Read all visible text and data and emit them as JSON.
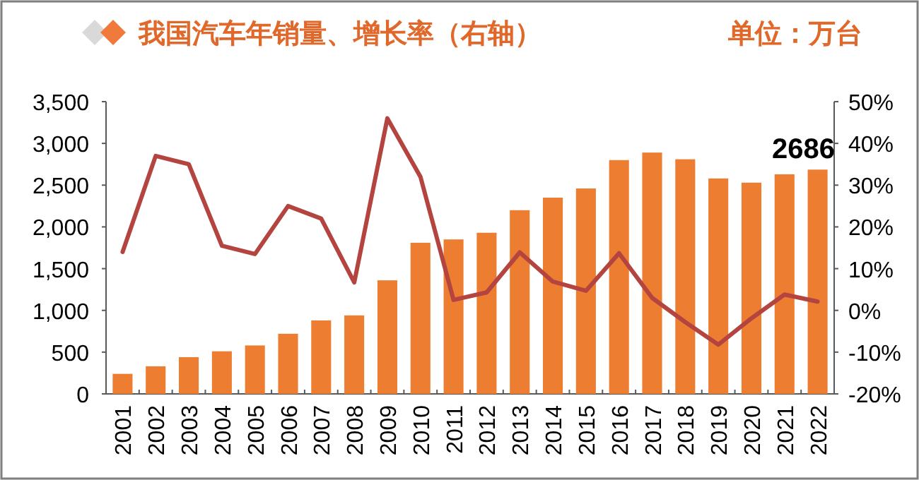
{
  "chart_data": {
    "type": "bar",
    "title": "我国汽车年销量、增长率（右轴）",
    "subtitle": "单位：万台",
    "categories": [
      "2001",
      "2002",
      "2003",
      "2004",
      "2005",
      "2006",
      "2007",
      "2008",
      "2009",
      "2010",
      "2011",
      "2012",
      "2013",
      "2014",
      "2015",
      "2016",
      "2017",
      "2018",
      "2019",
      "2020",
      "2021",
      "2022"
    ],
    "series": [
      {
        "color": "#ed7d31",
        "values": [
          240,
          330,
          440,
          510,
          580,
          720,
          880,
          940,
          1360,
          1810,
          1850,
          1930,
          2200,
          2350,
          2460,
          2800,
          2890,
          2810,
          2580,
          2530,
          2630,
          2686
        ],
        "value_labels": [
          null,
          null,
          null,
          null,
          null,
          null,
          null,
          null,
          null,
          null,
          null,
          null,
          null,
          null,
          null,
          null,
          null,
          null,
          null,
          null,
          null,
          "2686"
        ]
      },
      {
        "type": "line",
        "axis": "y2",
        "color": "#b4443f",
        "values": [
          14,
          37,
          35,
          15.5,
          13.5,
          25,
          22,
          6.7,
          46,
          32,
          2.5,
          4.3,
          13.9,
          6.9,
          4.7,
          13.7,
          3,
          -2.8,
          -8.2,
          -1.9,
          3.8,
          2.1
        ]
      }
    ],
    "ylim": [
      0,
      3500
    ],
    "yticks": [
      0,
      500,
      {
        "value": 1000,
        "label": "1,000"
      },
      {
        "value": 1500,
        "label": "1,500"
      },
      {
        "value": 2000,
        "label": "2,000"
      },
      {
        "value": 2500,
        "label": "2,500"
      },
      {
        "value": 3000,
        "label": "3,000"
      },
      {
        "value": 3500,
        "label": "3,500"
      }
    ],
    "y2lim": [
      -20,
      50
    ],
    "y2ticks": [
      {
        "value": -20,
        "label": "-20%"
      },
      {
        "value": -10,
        "label": "-10%"
      },
      {
        "value": 0,
        "label": "0%"
      },
      {
        "value": 10,
        "label": "10%"
      },
      {
        "value": 20,
        "label": "20%"
      },
      {
        "value": 30,
        "label": "30%"
      },
      {
        "value": 40,
        "label": "40%"
      },
      {
        "value": 50,
        "label": "50%"
      }
    ],
    "grid": false
  }
}
